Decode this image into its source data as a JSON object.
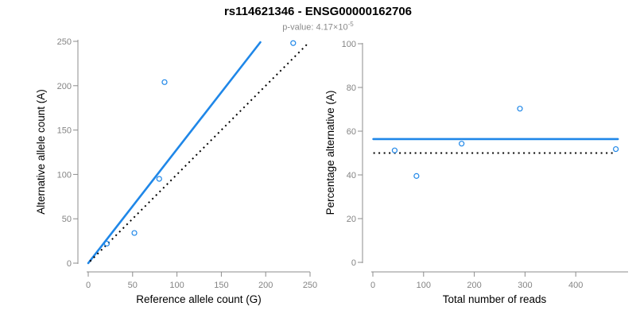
{
  "header": {
    "title": "rs114621346 - ENSG00000162706",
    "pvalue_text": "p-value: 4.17×10",
    "pvalue_exponent": "-5"
  },
  "colors": {
    "accent_blue": "#1F87E8",
    "dotted_black": "#000000",
    "axis_line_gray": "#8C8C8C",
    "tick_label_gray": "#848484",
    "axis_title_black": "#000000",
    "title_black": "#000000",
    "subtitle_gray": "#8a8a8a",
    "background": "#ffffff"
  },
  "chart_data": [
    {
      "type": "scatter",
      "xlabel": "Reference allele count (G)",
      "ylabel": "Alternative allele count (A)",
      "xlim": [
        0,
        250
      ],
      "ylim": [
        0,
        250
      ],
      "xticks": [
        0,
        50,
        100,
        150,
        200,
        250
      ],
      "yticks": [
        0,
        50,
        100,
        150,
        200,
        250
      ],
      "points": [
        [
          21,
          22
        ],
        [
          52,
          34
        ],
        [
          80,
          95
        ],
        [
          86,
          204
        ],
        [
          231,
          248
        ]
      ],
      "lines": [
        {
          "name": "fit-line",
          "x1": 0,
          "y1": 0,
          "x2": 194,
          "y2": 249,
          "style": "solid",
          "color": "blue"
        },
        {
          "name": "identity-line",
          "x1": 2,
          "y1": 2,
          "x2": 247,
          "y2": 247,
          "style": "dotted",
          "color": "black"
        }
      ],
      "grid": false,
      "legend": null
    },
    {
      "type": "scatter",
      "xlabel": "Total number of reads",
      "ylabel": "Percentage alternative (A)",
      "xlim": [
        0,
        500
      ],
      "ylim": [
        0,
        100
      ],
      "xticks": [
        0,
        100,
        200,
        300,
        400
      ],
      "yticks": [
        0,
        20,
        40,
        60,
        80,
        100
      ],
      "points": [
        [
          43,
          51.2
        ],
        [
          86,
          39.5
        ],
        [
          175,
          54.3
        ],
        [
          290,
          70.3
        ],
        [
          479,
          51.8
        ]
      ],
      "lines": [
        {
          "name": "mean-line",
          "x1": 1,
          "y1": 56.4,
          "x2": 483,
          "y2": 56.4,
          "style": "solid",
          "color": "blue"
        },
        {
          "name": "null-line",
          "x1": 1,
          "y1": 50,
          "x2": 475,
          "y2": 50,
          "style": "dotted",
          "color": "black"
        }
      ],
      "grid": false,
      "legend": null
    }
  ]
}
